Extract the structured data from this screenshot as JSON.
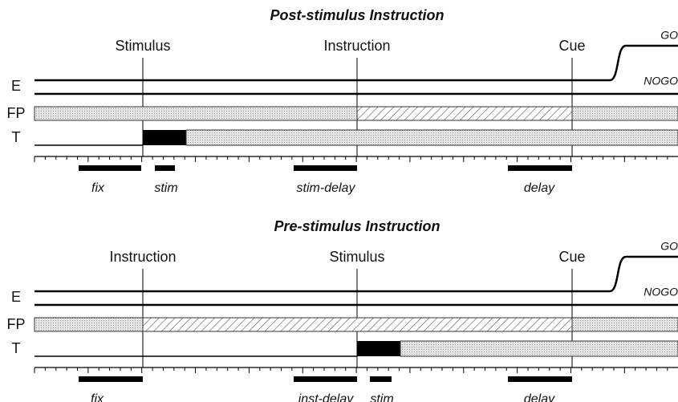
{
  "panels": [
    {
      "title": "Post-stimulus Instruction",
      "events": [
        "Stimulus",
        "Instruction",
        "Cue"
      ],
      "rows": [
        "E",
        "FP",
        "T"
      ],
      "outcomes": [
        "GO",
        "NOGO"
      ],
      "epochs": [
        "fix",
        "stim",
        "stim-delay",
        "delay"
      ]
    },
    {
      "title": "Pre-stimulus Instruction",
      "events": [
        "Instruction",
        "Stimulus",
        "Cue"
      ],
      "rows": [
        "E",
        "FP",
        "T"
      ],
      "outcomes": [
        "GO",
        "NOGO"
      ],
      "epochs": [
        "fix",
        "inst-delay",
        "stim",
        "delay"
      ]
    }
  ]
}
